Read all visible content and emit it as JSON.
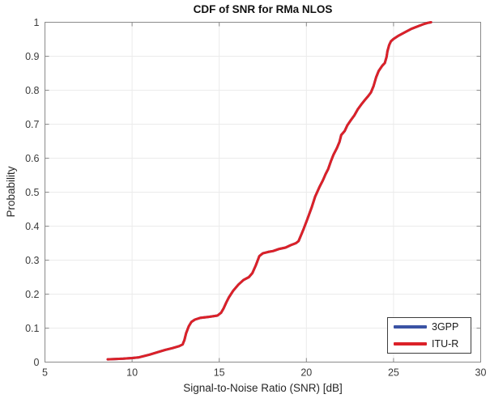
{
  "figure": {
    "kind": "matlab-style figure",
    "background": "#ffffff"
  },
  "chart_data": {
    "type": "line",
    "title": "CDF of SNR for RMa NLOS",
    "xlabel": "Signal-to-Noise Ratio (SNR) [dB]",
    "ylabel": "Probability",
    "xlim": [
      5,
      30
    ],
    "ylim": [
      0,
      1
    ],
    "xticks": [
      5,
      10,
      15,
      20,
      25,
      30
    ],
    "yticks": [
      0,
      0.1,
      0.2,
      0.3,
      0.4,
      0.5,
      0.6,
      0.7,
      0.8,
      0.9,
      1
    ],
    "xtick_labels": [
      "5",
      "10",
      "15",
      "20",
      "25",
      "30"
    ],
    "ytick_labels": [
      "0",
      "0.1",
      "0.2",
      "0.3",
      "0.4",
      "0.5",
      "0.6",
      "0.7",
      "0.8",
      "0.9",
      "1"
    ],
    "grid": true,
    "gridline_color": "#ebebeb",
    "box_color": "#8a8a8a",
    "tick_label_color": "#3b3b3b",
    "legend": {
      "position": "south-east",
      "entries": [
        {
          "label": "3GPP",
          "color": "#3a53a4"
        },
        {
          "label": "ITU-R",
          "color": "#db2128"
        }
      ]
    },
    "series": [
      {
        "name": "3GPP",
        "color": "#3a53a4",
        "note": "curve not visible in plot; fully overlapped by ITU-R curve",
        "points_same_as": "ITU-R"
      },
      {
        "name": "ITU-R",
        "color": "#db2128",
        "points": [
          [
            8.6,
            0.008
          ],
          [
            9.0,
            0.009
          ],
          [
            9.5,
            0.01
          ],
          [
            10.0,
            0.012
          ],
          [
            10.4,
            0.014
          ],
          [
            10.7,
            0.018
          ],
          [
            11.0,
            0.022
          ],
          [
            11.4,
            0.028
          ],
          [
            11.9,
            0.036
          ],
          [
            12.3,
            0.041
          ],
          [
            12.7,
            0.047
          ],
          [
            12.9,
            0.052
          ],
          [
            13.0,
            0.065
          ],
          [
            13.1,
            0.085
          ],
          [
            13.25,
            0.105
          ],
          [
            13.4,
            0.118
          ],
          [
            13.6,
            0.125
          ],
          [
            13.9,
            0.13
          ],
          [
            14.4,
            0.133
          ],
          [
            14.9,
            0.137
          ],
          [
            15.1,
            0.145
          ],
          [
            15.25,
            0.158
          ],
          [
            15.4,
            0.175
          ],
          [
            15.55,
            0.19
          ],
          [
            15.8,
            0.21
          ],
          [
            16.1,
            0.228
          ],
          [
            16.4,
            0.242
          ],
          [
            16.7,
            0.25
          ],
          [
            16.9,
            0.262
          ],
          [
            17.1,
            0.285
          ],
          [
            17.3,
            0.312
          ],
          [
            17.5,
            0.32
          ],
          [
            17.8,
            0.324
          ],
          [
            18.1,
            0.327
          ],
          [
            18.45,
            0.333
          ],
          [
            18.8,
            0.337
          ],
          [
            19.1,
            0.344
          ],
          [
            19.4,
            0.35
          ],
          [
            19.55,
            0.356
          ],
          [
            19.7,
            0.374
          ],
          [
            19.85,
            0.393
          ],
          [
            20.05,
            0.42
          ],
          [
            20.3,
            0.455
          ],
          [
            20.5,
            0.487
          ],
          [
            20.75,
            0.515
          ],
          [
            20.95,
            0.535
          ],
          [
            21.1,
            0.553
          ],
          [
            21.25,
            0.568
          ],
          [
            21.4,
            0.59
          ],
          [
            21.55,
            0.61
          ],
          [
            21.75,
            0.63
          ],
          [
            21.9,
            0.648
          ],
          [
            22.0,
            0.668
          ],
          [
            22.2,
            0.68
          ],
          [
            22.35,
            0.697
          ],
          [
            22.55,
            0.712
          ],
          [
            22.75,
            0.726
          ],
          [
            22.95,
            0.744
          ],
          [
            23.15,
            0.758
          ],
          [
            23.35,
            0.771
          ],
          [
            23.55,
            0.783
          ],
          [
            23.7,
            0.793
          ],
          [
            23.85,
            0.812
          ],
          [
            24.0,
            0.838
          ],
          [
            24.15,
            0.857
          ],
          [
            24.35,
            0.872
          ],
          [
            24.5,
            0.88
          ],
          [
            24.6,
            0.898
          ],
          [
            24.65,
            0.915
          ],
          [
            24.75,
            0.933
          ],
          [
            24.85,
            0.944
          ],
          [
            25.0,
            0.951
          ],
          [
            25.3,
            0.961
          ],
          [
            25.7,
            0.972
          ],
          [
            26.0,
            0.98
          ],
          [
            26.4,
            0.988
          ],
          [
            26.7,
            0.994
          ],
          [
            26.95,
            0.998
          ],
          [
            27.15,
            1.0
          ]
        ]
      }
    ]
  }
}
